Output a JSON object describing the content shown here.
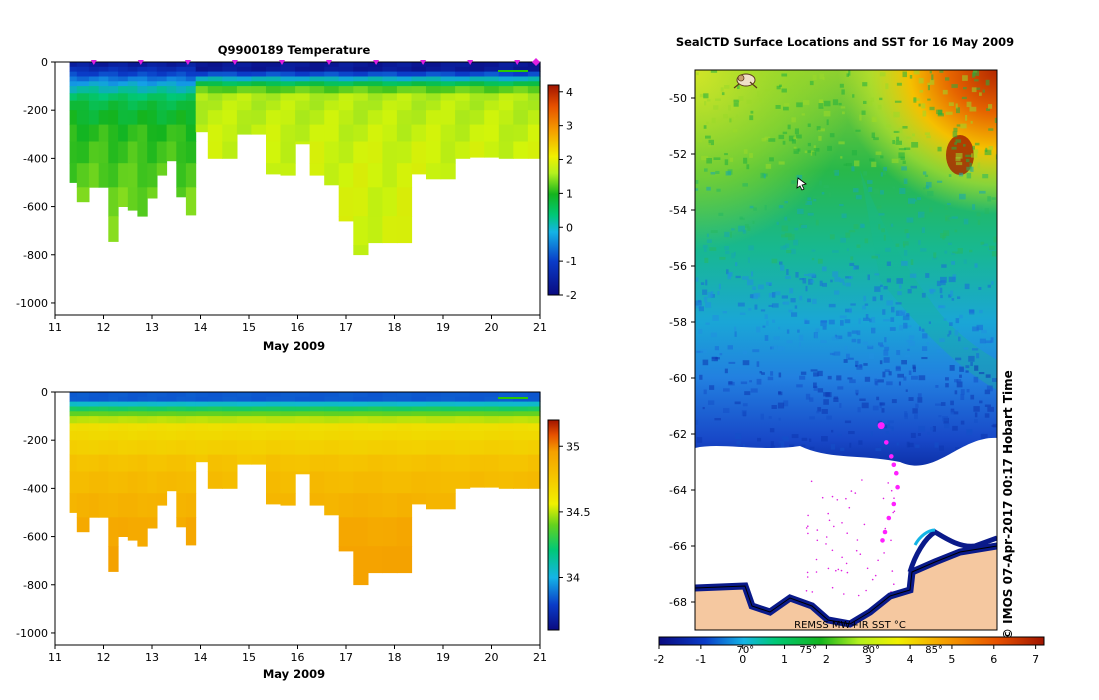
{
  "chart_data": [
    {
      "type": "heatmap",
      "title": "Q9900189  Temperature",
      "xlabel": "May 2009",
      "ylabel": "",
      "x_ticks": [
        "11",
        "12",
        "13",
        "14",
        "15",
        "16",
        "17",
        "18",
        "19",
        "20",
        "21"
      ],
      "y_ticks": [
        "0",
        "-200",
        "-400",
        "-600",
        "-800",
        "-1000"
      ],
      "xlim": [
        11,
        21
      ],
      "ylim": [
        -1050,
        0
      ],
      "colorbar": {
        "min": -2,
        "max": 4.2,
        "ticks": [
          "4",
          "3",
          "2",
          "1",
          "0",
          "-1",
          "-2"
        ]
      },
      "legend": "top-right",
      "profile_days": [
        11.3,
        11.6,
        11.8,
        12.0,
        12.2,
        12.4,
        12.6,
        12.8,
        13.0,
        13.2,
        13.4,
        13.6,
        13.8,
        14.0,
        14.3,
        14.6,
        14.9,
        15.2,
        15.5,
        15.8,
        16.1,
        16.4,
        16.7,
        17.0,
        17.3,
        17.6,
        17.9,
        18.2,
        18.5,
        18.8,
        19.1,
        19.4,
        19.7,
        20.0,
        20.3,
        20.6,
        20.9
      ],
      "profile_max_depth": [
        500,
        580,
        520,
        520,
        745,
        600,
        615,
        640,
        565,
        470,
        410,
        560,
        635,
        290,
        400,
        400,
        300,
        300,
        465,
        470,
        340,
        470,
        510,
        660,
        800,
        750,
        750,
        750,
        465,
        485,
        485,
        400,
        395,
        395,
        400,
        400,
        400
      ]
    },
    {
      "type": "heatmap",
      "title": "",
      "xlabel": "May 2009",
      "ylabel": "",
      "x_ticks": [
        "11",
        "12",
        "13",
        "14",
        "15",
        "16",
        "17",
        "18",
        "19",
        "20",
        "21"
      ],
      "y_ticks": [
        "0",
        "-200",
        "-400",
        "-600",
        "-800",
        "-1000"
      ],
      "xlim": [
        11,
        21
      ],
      "ylim": [
        -1050,
        0
      ],
      "colorbar": {
        "min": 33.6,
        "max": 35.2,
        "ticks": [
          "35",
          "34.5",
          "34"
        ]
      },
      "legend": "top-right"
    },
    {
      "type": "heatmap",
      "title": "SealCTD Surface Locations and SST for 16 May 2009",
      "y_ticks": [
        "-50",
        "-52",
        "-54",
        "-56",
        "-58",
        "-60",
        "-62",
        "-64",
        "-66",
        "-68"
      ],
      "ylim": [
        -69,
        -49
      ],
      "x_ticks_top": [
        "70°",
        "75°",
        "80°",
        "85°"
      ],
      "xlim": [
        66,
        90
      ],
      "colorbar": {
        "min": -2,
        "max": 7.2,
        "ticks": [
          "-2",
          "-1",
          "0",
          "1",
          "2",
          "3",
          "4",
          "5",
          "6",
          "7"
        ]
      },
      "source_label": "REMSS MW+IR SST °C",
      "credit": "© IMOS 07-Apr-2017 00:17 Hobart Time",
      "track": [
        {
          "lon": 80.8,
          "lat": -61.7
        },
        {
          "lon": 81.2,
          "lat": -62.3
        },
        {
          "lon": 81.6,
          "lat": -62.8
        },
        {
          "lon": 81.8,
          "lat": -63.1
        },
        {
          "lon": 82.0,
          "lat": -63.4
        },
        {
          "lon": 82.1,
          "lat": -63.9
        },
        {
          "lon": 81.8,
          "lat": -64.5
        },
        {
          "lon": 81.4,
          "lat": -65.0
        },
        {
          "lon": 81.1,
          "lat": -65.5
        },
        {
          "lon": 80.9,
          "lat": -65.8
        }
      ]
    }
  ]
}
